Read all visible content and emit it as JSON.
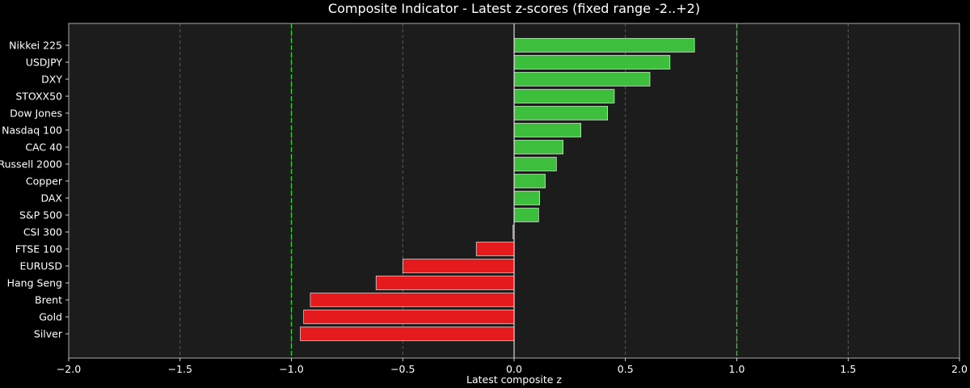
{
  "chart_data": {
    "type": "bar",
    "orientation": "horizontal",
    "title": "Composite Indicator - Latest z-scores (fixed range -2..+2)",
    "xlabel": "Latest composite z",
    "ylabel": "",
    "xlim": [
      -2.0,
      2.0
    ],
    "xticks": [
      -2.0,
      -1.5,
      -1.0,
      -0.5,
      0.0,
      0.5,
      1.0,
      1.5,
      2.0
    ],
    "xtick_labels": [
      "−2.0",
      "−1.5",
      "−1.0",
      "−0.5",
      "0.0",
      "0.5",
      "1.0",
      "1.5",
      "2.0"
    ],
    "threshold_lines": [
      -1.0,
      1.0
    ],
    "zero_line": 0.0,
    "grid": "vertical dashed",
    "categories": [
      "Nikkei 225",
      "USDJPY",
      "DXY",
      "STOXX50",
      "Dow Jones",
      "Nasdaq 100",
      "CAC 40",
      "Russell 2000",
      "Copper",
      "DAX",
      "S&P 500",
      "CSI 300",
      "FTSE 100",
      "EURUSD",
      "Hang Seng",
      "Brent",
      "Gold",
      "Silver"
    ],
    "values": [
      0.81,
      0.7,
      0.61,
      0.45,
      0.42,
      0.3,
      0.22,
      0.19,
      0.14,
      0.115,
      0.11,
      -0.005,
      -0.17,
      -0.5,
      -0.62,
      -0.915,
      -0.945,
      -0.96
    ],
    "colors": {
      "positive": "#3dbf3d",
      "negative": "#e41a1c",
      "bar_edge": "#ffffff",
      "plot_bg": "#1c1c1c",
      "page_bg": "#000000",
      "threshold": "#22dd22",
      "grid": "#6a6a6a",
      "zero": "#ffffff"
    }
  }
}
